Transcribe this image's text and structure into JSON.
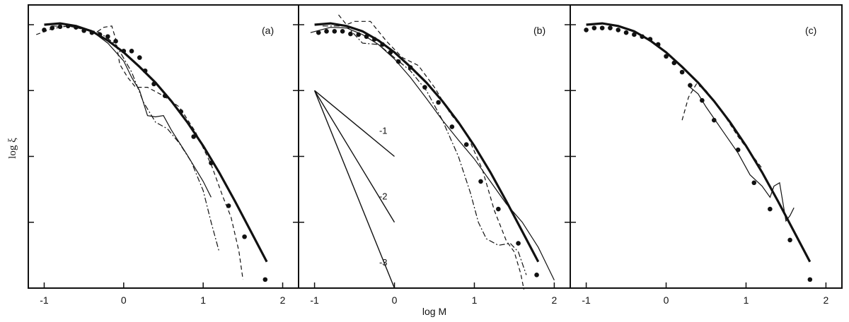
{
  "chart_data": {
    "type": "line",
    "panel_count": 3,
    "ylabel": "log ξ",
    "xlabel": "log M",
    "xlim": [
      -1.2,
      2.2
    ],
    "xticks": [
      -1,
      0,
      1,
      2
    ],
    "ylim": [
      0,
      4.3
    ],
    "y_tick_count": 4,
    "grid": false,
    "panels": [
      {
        "label": "(a)",
        "series": [
          {
            "style": "thick-solid",
            "x": [
              -1.0,
              -0.8,
              -0.6,
              -0.4,
              -0.2,
              0.0,
              0.2,
              0.4,
              0.6,
              0.8,
              1.0,
              1.2,
              1.4,
              1.6,
              1.8
            ],
            "y": [
              4.0,
              4.02,
              3.98,
              3.9,
              3.76,
              3.58,
              3.36,
              3.12,
              2.84,
              2.52,
              2.16,
              1.76,
              1.32,
              0.86,
              0.4
            ]
          },
          {
            "style": "dots",
            "x": [
              -1.0,
              -0.9,
              -0.8,
              -0.7,
              -0.6,
              -0.5,
              -0.4,
              -0.3,
              -0.2,
              -0.1,
              0.0,
              0.1,
              0.2,
              0.27,
              0.38,
              0.52,
              0.72,
              0.88,
              1.1,
              1.32,
              1.52,
              1.78
            ],
            "y": [
              3.92,
              3.95,
              3.97,
              3.98,
              3.96,
              3.91,
              3.88,
              3.85,
              3.82,
              3.75,
              3.6,
              3.6,
              3.5,
              3.3,
              3.1,
              2.92,
              2.68,
              2.3,
              1.9,
              1.25,
              0.78,
              0.13
            ]
          },
          {
            "style": "thin-solid",
            "x": [
              -1.0,
              -0.8,
              -0.6,
              -0.4,
              -0.2,
              0.0,
              0.1,
              0.2,
              0.3,
              0.4,
              0.5,
              0.6,
              0.8,
              1.0,
              1.1
            ],
            "y": [
              4.0,
              4.02,
              3.98,
              3.9,
              3.72,
              3.45,
              3.2,
              3.0,
              2.62,
              2.6,
              2.62,
              2.4,
              2.02,
              1.62,
              1.38
            ]
          },
          {
            "style": "dashed",
            "x": [
              -1.1,
              -0.9,
              -0.7,
              -0.5,
              -0.35,
              -0.25,
              -0.15,
              -0.1,
              -0.05,
              0.05,
              0.15,
              0.3,
              0.5,
              0.7,
              0.9,
              1.1,
              1.25,
              1.35,
              1.45,
              1.5
            ],
            "y": [
              3.85,
              3.94,
              3.98,
              3.93,
              3.88,
              3.96,
              3.98,
              3.78,
              3.4,
              3.2,
              3.05,
              3.05,
              2.92,
              2.75,
              2.38,
              1.88,
              1.38,
              1.08,
              0.56,
              0.13
            ]
          },
          {
            "style": "dash-dot",
            "x": [
              -0.9,
              -0.6,
              -0.3,
              -0.1,
              0.1,
              0.25,
              0.4,
              0.55,
              0.7,
              0.85,
              1.0,
              1.1,
              1.2
            ],
            "y": [
              3.98,
              3.97,
              3.88,
              3.7,
              3.28,
              2.82,
              2.52,
              2.42,
              2.2,
              1.92,
              1.48,
              1.0,
              0.56
            ]
          }
        ]
      },
      {
        "label": "(b)",
        "series": [
          {
            "style": "thick-solid",
            "x": [
              -1.0,
              -0.8,
              -0.6,
              -0.4,
              -0.2,
              0.0,
              0.2,
              0.4,
              0.6,
              0.8,
              1.0,
              1.2,
              1.4,
              1.6,
              1.8
            ],
            "y": [
              4.0,
              4.02,
              3.98,
              3.9,
              3.76,
              3.58,
              3.36,
              3.12,
              2.84,
              2.52,
              2.16,
              1.76,
              1.32,
              0.86,
              0.4
            ]
          },
          {
            "style": "dots",
            "x": [
              -0.95,
              -0.85,
              -0.75,
              -0.65,
              -0.55,
              -0.45,
              -0.35,
              -0.25,
              -0.15,
              -0.05,
              0.05,
              0.2,
              0.38,
              0.55,
              0.72,
              0.9,
              1.08,
              1.3,
              1.55,
              1.78
            ],
            "y": [
              3.88,
              3.9,
              3.9,
              3.9,
              3.86,
              3.85,
              3.82,
              3.78,
              3.7,
              3.58,
              3.44,
              3.35,
              3.05,
              2.82,
              2.45,
              2.18,
              1.62,
              1.2,
              0.68,
              0.2
            ]
          },
          {
            "style": "thin-solid",
            "x": [
              -1.05,
              -0.8,
              -0.6,
              -0.4,
              -0.2,
              0.0,
              0.2,
              0.4,
              0.6,
              0.8,
              1.0,
              1.2,
              1.4,
              1.6,
              1.8,
              2.0
            ],
            "y": [
              3.88,
              3.96,
              3.95,
              3.85,
              3.7,
              3.48,
              3.2,
              2.88,
              2.55,
              2.25,
              1.96,
              1.62,
              1.28,
              1.0,
              0.62,
              0.12
            ]
          },
          {
            "style": "dashed",
            "x": [
              -0.7,
              -0.6,
              -0.5,
              -0.3,
              -0.1,
              0.1,
              0.3,
              0.5,
              0.7,
              0.9,
              1.1,
              1.25,
              1.4,
              1.5,
              1.58,
              1.62
            ],
            "y": [
              4.15,
              4.0,
              4.05,
              4.05,
              3.75,
              3.5,
              3.38,
              3.05,
              2.65,
              2.35,
              1.8,
              1.18,
              0.72,
              0.55,
              0.22,
              -0.02
            ]
          },
          {
            "style": "dash-dot",
            "x": [
              -0.9,
              -0.6,
              -0.4,
              -0.2,
              0.0,
              0.2,
              0.4,
              0.6,
              0.8,
              0.95,
              1.05,
              1.15,
              1.3,
              1.45,
              1.55,
              1.65
            ],
            "y": [
              3.98,
              3.98,
              3.72,
              3.7,
              3.5,
              3.3,
              3.0,
              2.55,
              2.0,
              1.45,
              1.0,
              0.75,
              0.65,
              0.68,
              0.55,
              0.2
            ]
          },
          {
            "style": "slope-line",
            "label": "-1",
            "x": [
              -1.0,
              0.0
            ],
            "y": [
              3.0,
              2.0
            ]
          },
          {
            "style": "slope-line",
            "label": "-2",
            "x": [
              -1.0,
              0.0
            ],
            "y": [
              3.0,
              1.0
            ]
          },
          {
            "style": "slope-line",
            "label": "-3",
            "x": [
              -1.0,
              0.0
            ],
            "y": [
              3.0,
              0.0
            ]
          }
        ]
      },
      {
        "label": "(c)",
        "series": [
          {
            "style": "thick-solid",
            "x": [
              -1.0,
              -0.8,
              -0.6,
              -0.4,
              -0.2,
              0.0,
              0.2,
              0.4,
              0.6,
              0.8,
              1.0,
              1.2,
              1.4,
              1.6,
              1.8
            ],
            "y": [
              4.0,
              4.02,
              3.98,
              3.9,
              3.76,
              3.58,
              3.36,
              3.12,
              2.84,
              2.52,
              2.16,
              1.76,
              1.32,
              0.86,
              0.4
            ]
          },
          {
            "style": "dots",
            "x": [
              -1.0,
              -0.9,
              -0.8,
              -0.7,
              -0.6,
              -0.5,
              -0.4,
              -0.3,
              -0.2,
              -0.1,
              0.0,
              0.1,
              0.2,
              0.3,
              0.45,
              0.6,
              0.9,
              1.1,
              1.3,
              1.55,
              1.8
            ],
            "y": [
              3.92,
              3.95,
              3.95,
              3.95,
              3.92,
              3.88,
              3.85,
              3.82,
              3.78,
              3.7,
              3.52,
              3.42,
              3.28,
              3.08,
              2.85,
              2.55,
              2.1,
              1.6,
              1.2,
              0.73,
              0.13
            ]
          },
          {
            "style": "thin-solid",
            "x": [
              0.3,
              0.4,
              0.5,
              0.7,
              0.9,
              1.05,
              1.2,
              1.3,
              1.35,
              1.42,
              1.5,
              1.55,
              1.6
            ],
            "y": [
              3.05,
              2.95,
              2.75,
              2.4,
              2.05,
              1.72,
              1.55,
              1.38,
              1.55,
              1.6,
              1.02,
              1.1,
              1.22
            ]
          },
          {
            "style": "dashed",
            "x": [
              0.2,
              0.28,
              0.38,
              0.5,
              0.7,
              0.9,
              1.1,
              1.2
            ],
            "y": [
              2.55,
              2.9,
              3.1,
              3.0,
              2.68,
              2.3,
              1.98,
              1.82
            ]
          }
        ]
      }
    ]
  }
}
